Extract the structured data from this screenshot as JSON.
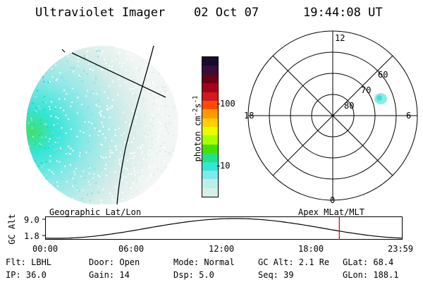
{
  "header": {
    "instrument": "Ultraviolet Imager",
    "date": "02 Oct 07",
    "time": "19:44:08 UT"
  },
  "colorbar": {
    "unit_label": "photon cm",
    "unit_exp1": "-2",
    "unit_mid": "s",
    "unit_exp2": "-1",
    "ticks": [
      "100",
      "10"
    ],
    "colors_top_to_bottom": [
      "#1a0a2e",
      "#3a0d3a",
      "#6a0010",
      "#a8001a",
      "#d21a1a",
      "#ff4a00",
      "#ff9a00",
      "#ffd100",
      "#e6ff00",
      "#a8ff00",
      "#44e000",
      "#22e08c",
      "#33e6d6",
      "#7fe9ea",
      "#bdeee9",
      "#d8eeea"
    ]
  },
  "polar": {
    "lat_labels": [
      "60",
      "70",
      "80"
    ],
    "mlt_labels": {
      "top": "12",
      "left": "18",
      "right": "6",
      "bottom": "0"
    }
  },
  "timeline": {
    "left_label": "Geographic Lat/Lon",
    "right_label": "Apex MLat/MLT",
    "y_axis_title": "GC Alt",
    "y_ticks": [
      "9.0",
      "1.8"
    ],
    "x_ticks": [
      "00:00",
      "06:00",
      "12:00",
      "18:00",
      "23:59"
    ],
    "current_time_marker": "19:44",
    "marker_color": "#d40000"
  },
  "footer": {
    "row1": {
      "flt": "Flt: LBHL",
      "door": "Door: Open",
      "mode": "Mode: Normal",
      "gcalt": "GC Alt: 2.1 Re",
      "glat": "GLat:  68.4"
    },
    "row2": {
      "ip": "IP: 36.0",
      "gain": "Gain: 14",
      "dsp": "Dsp:    5.0",
      "seq": "Seq: 39",
      "glon": "GLon: 188.1"
    }
  }
}
